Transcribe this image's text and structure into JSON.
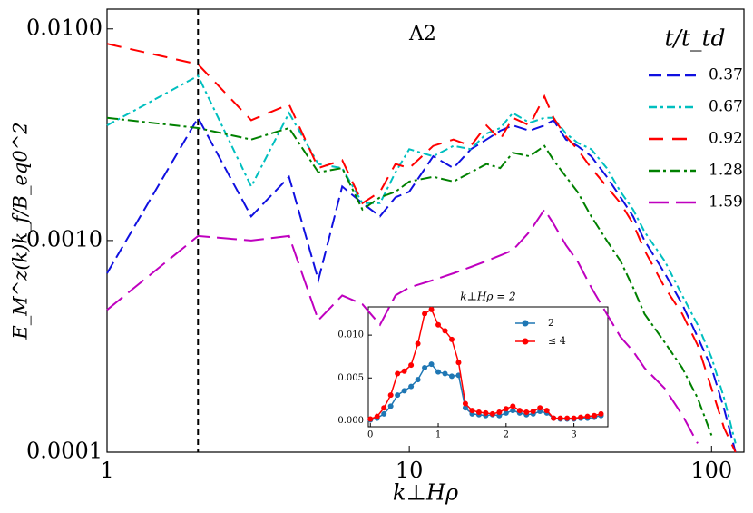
{
  "chart_data": [
    {
      "type": "line",
      "annotation": "A2",
      "xlabel": "k⊥Hρ",
      "ylabel": "E_M^z(k)k_f/B_eq0^2",
      "xscale": "log",
      "yscale": "log",
      "xlim": [
        1,
        128
      ],
      "ylim": [
        0.0001,
        0.0124
      ],
      "xticks": [
        1,
        10,
        100
      ],
      "yticks": [
        {
          "value": 0.0001,
          "label": "0.0001"
        },
        {
          "value": 0.001,
          "label": "0.0010"
        },
        {
          "value": 0.01,
          "label": "0.0100"
        }
      ],
      "vline": 2,
      "legend_title": "t/t_td",
      "legend": "upper right",
      "x": [
        1,
        2,
        3,
        4,
        5,
        6,
        7,
        8,
        9,
        10,
        12,
        14,
        16,
        18,
        20,
        22,
        25,
        28,
        30,
        33,
        36,
        40,
        45,
        50,
        55,
        60,
        70,
        80,
        90,
        100,
        110,
        120
      ],
      "series": [
        {
          "name": "0.37",
          "color": "#1010e0",
          "linestyle": "dashed",
          "values": [
            0.0007,
            0.0038,
            0.0013,
            0.002,
            0.00065,
            0.0018,
            0.0015,
            0.0013,
            0.0016,
            0.0017,
            0.0025,
            0.0022,
            0.0027,
            0.003,
            0.0033,
            0.0035,
            0.0033,
            0.0035,
            0.0037,
            0.003,
            0.0028,
            0.0025,
            0.002,
            0.0016,
            0.0013,
            0.001,
            0.0007,
            0.0005,
            0.00035,
            0.00025,
            0.00016,
            0.0001
          ]
        },
        {
          "name": "0.67",
          "color": "#00bfbf",
          "linestyle": "dashdense",
          "values": [
            0.0035,
            0.006,
            0.0018,
            0.004,
            0.0023,
            0.0022,
            0.0015,
            0.0015,
            0.0021,
            0.0027,
            0.0025,
            0.0028,
            0.0027,
            0.0032,
            0.0034,
            0.004,
            0.0036,
            0.0038,
            0.0038,
            0.0032,
            0.0029,
            0.0027,
            0.0022,
            0.0017,
            0.0014,
            0.0011,
            0.0008,
            0.00055,
            0.0004,
            0.00028,
            0.00018,
            0.00011
          ]
        },
        {
          "name": "0.92",
          "color": "#ff0000",
          "linestyle": "dashloose",
          "values": [
            0.0085,
            0.0068,
            0.0037,
            0.0044,
            0.0022,
            0.0024,
            0.0015,
            0.0017,
            0.0023,
            0.0022,
            0.0028,
            0.003,
            0.0028,
            0.0035,
            0.003,
            0.0038,
            0.0035,
            0.0048,
            0.0038,
            0.0031,
            0.0027,
            0.0022,
            0.0018,
            0.0015,
            0.0012,
            0.0009,
            0.0006,
            0.00045,
            0.00032,
            0.0002,
            0.00013,
            0.0001
          ]
        },
        {
          "name": "1.28",
          "color": "#008000",
          "linestyle": "dashdot",
          "values": [
            0.0038,
            0.0034,
            0.003,
            0.0034,
            0.0021,
            0.0022,
            0.0014,
            0.0016,
            0.0017,
            0.0019,
            0.002,
            0.0019,
            0.0021,
            0.0023,
            0.0022,
            0.0026,
            0.0025,
            0.0028,
            0.0024,
            0.002,
            0.0017,
            0.0013,
            0.001,
            0.0008,
            0.0006,
            0.00045,
            0.00033,
            0.00025,
            0.00018,
            0.00012,
            null,
            null
          ]
        },
        {
          "name": "1.59",
          "color": "#bf00bf",
          "linestyle": "longdash",
          "values": [
            0.00047,
            0.00105,
            0.001,
            0.00105,
            0.00042,
            0.00055,
            0.0005,
            0.0004,
            0.00055,
            0.0006,
            0.00065,
            0.0007,
            0.00075,
            0.0008,
            0.00085,
            0.0009,
            0.0011,
            0.0014,
            0.0012,
            0.00095,
            0.0008,
            0.0006,
            0.00045,
            0.00035,
            0.0003,
            0.00025,
            0.0002,
            0.00015,
            0.00011,
            null,
            null,
            null
          ]
        }
      ]
    },
    {
      "type": "line-marker",
      "title": "k⊥Hρ = 2",
      "xlim": [
        -0.03,
        3.5
      ],
      "ylim": [
        -0.0007,
        0.0133
      ],
      "xticks": [
        0,
        1,
        2,
        3
      ],
      "yticks": [
        {
          "value": 0,
          "label": "0.000"
        },
        {
          "value": 0.005,
          "label": "0.005"
        },
        {
          "value": 0.01,
          "label": "0.010"
        }
      ],
      "legend": "upper right",
      "x": [
        0,
        0.1,
        0.2,
        0.3,
        0.4,
        0.5,
        0.6,
        0.7,
        0.8,
        0.9,
        1.0,
        1.1,
        1.2,
        1.3,
        1.4,
        1.5,
        1.6,
        1.7,
        1.8,
        1.9,
        2.0,
        2.1,
        2.2,
        2.3,
        2.4,
        2.5,
        2.6,
        2.7,
        2.8,
        2.9,
        3.0,
        3.1,
        3.2,
        3.3,
        3.4
      ],
      "series": [
        {
          "name": "2",
          "color": "#1f77b4",
          "values": [
            0.0001,
            0.0003,
            0.0008,
            0.0017,
            0.003,
            0.0035,
            0.004,
            0.0048,
            0.0062,
            0.0066,
            0.0057,
            0.0055,
            0.0052,
            0.0053,
            0.0015,
            0.0008,
            0.0007,
            0.0006,
            0.0007,
            0.0006,
            0.0009,
            0.0012,
            0.0009,
            0.0007,
            0.0008,
            0.0011,
            0.0009,
            0.0003,
            0.0002,
            0.0002,
            0.0002,
            0.0003,
            0.0003,
            0.0004,
            0.0006
          ]
        },
        {
          "name": "≤ 4",
          "color": "#ff0000",
          "values": [
            0.0002,
            0.0005,
            0.0015,
            0.003,
            0.0055,
            0.0058,
            0.0065,
            0.009,
            0.0125,
            0.013,
            0.0112,
            0.0105,
            0.0095,
            0.0068,
            0.002,
            0.0012,
            0.001,
            0.0009,
            0.0008,
            0.001,
            0.0014,
            0.0017,
            0.0012,
            0.001,
            0.0011,
            0.0015,
            0.0012,
            0.0003,
            0.0003,
            0.0003,
            0.0003,
            0.0004,
            0.0005,
            0.0006,
            0.0008
          ]
        }
      ]
    }
  ]
}
